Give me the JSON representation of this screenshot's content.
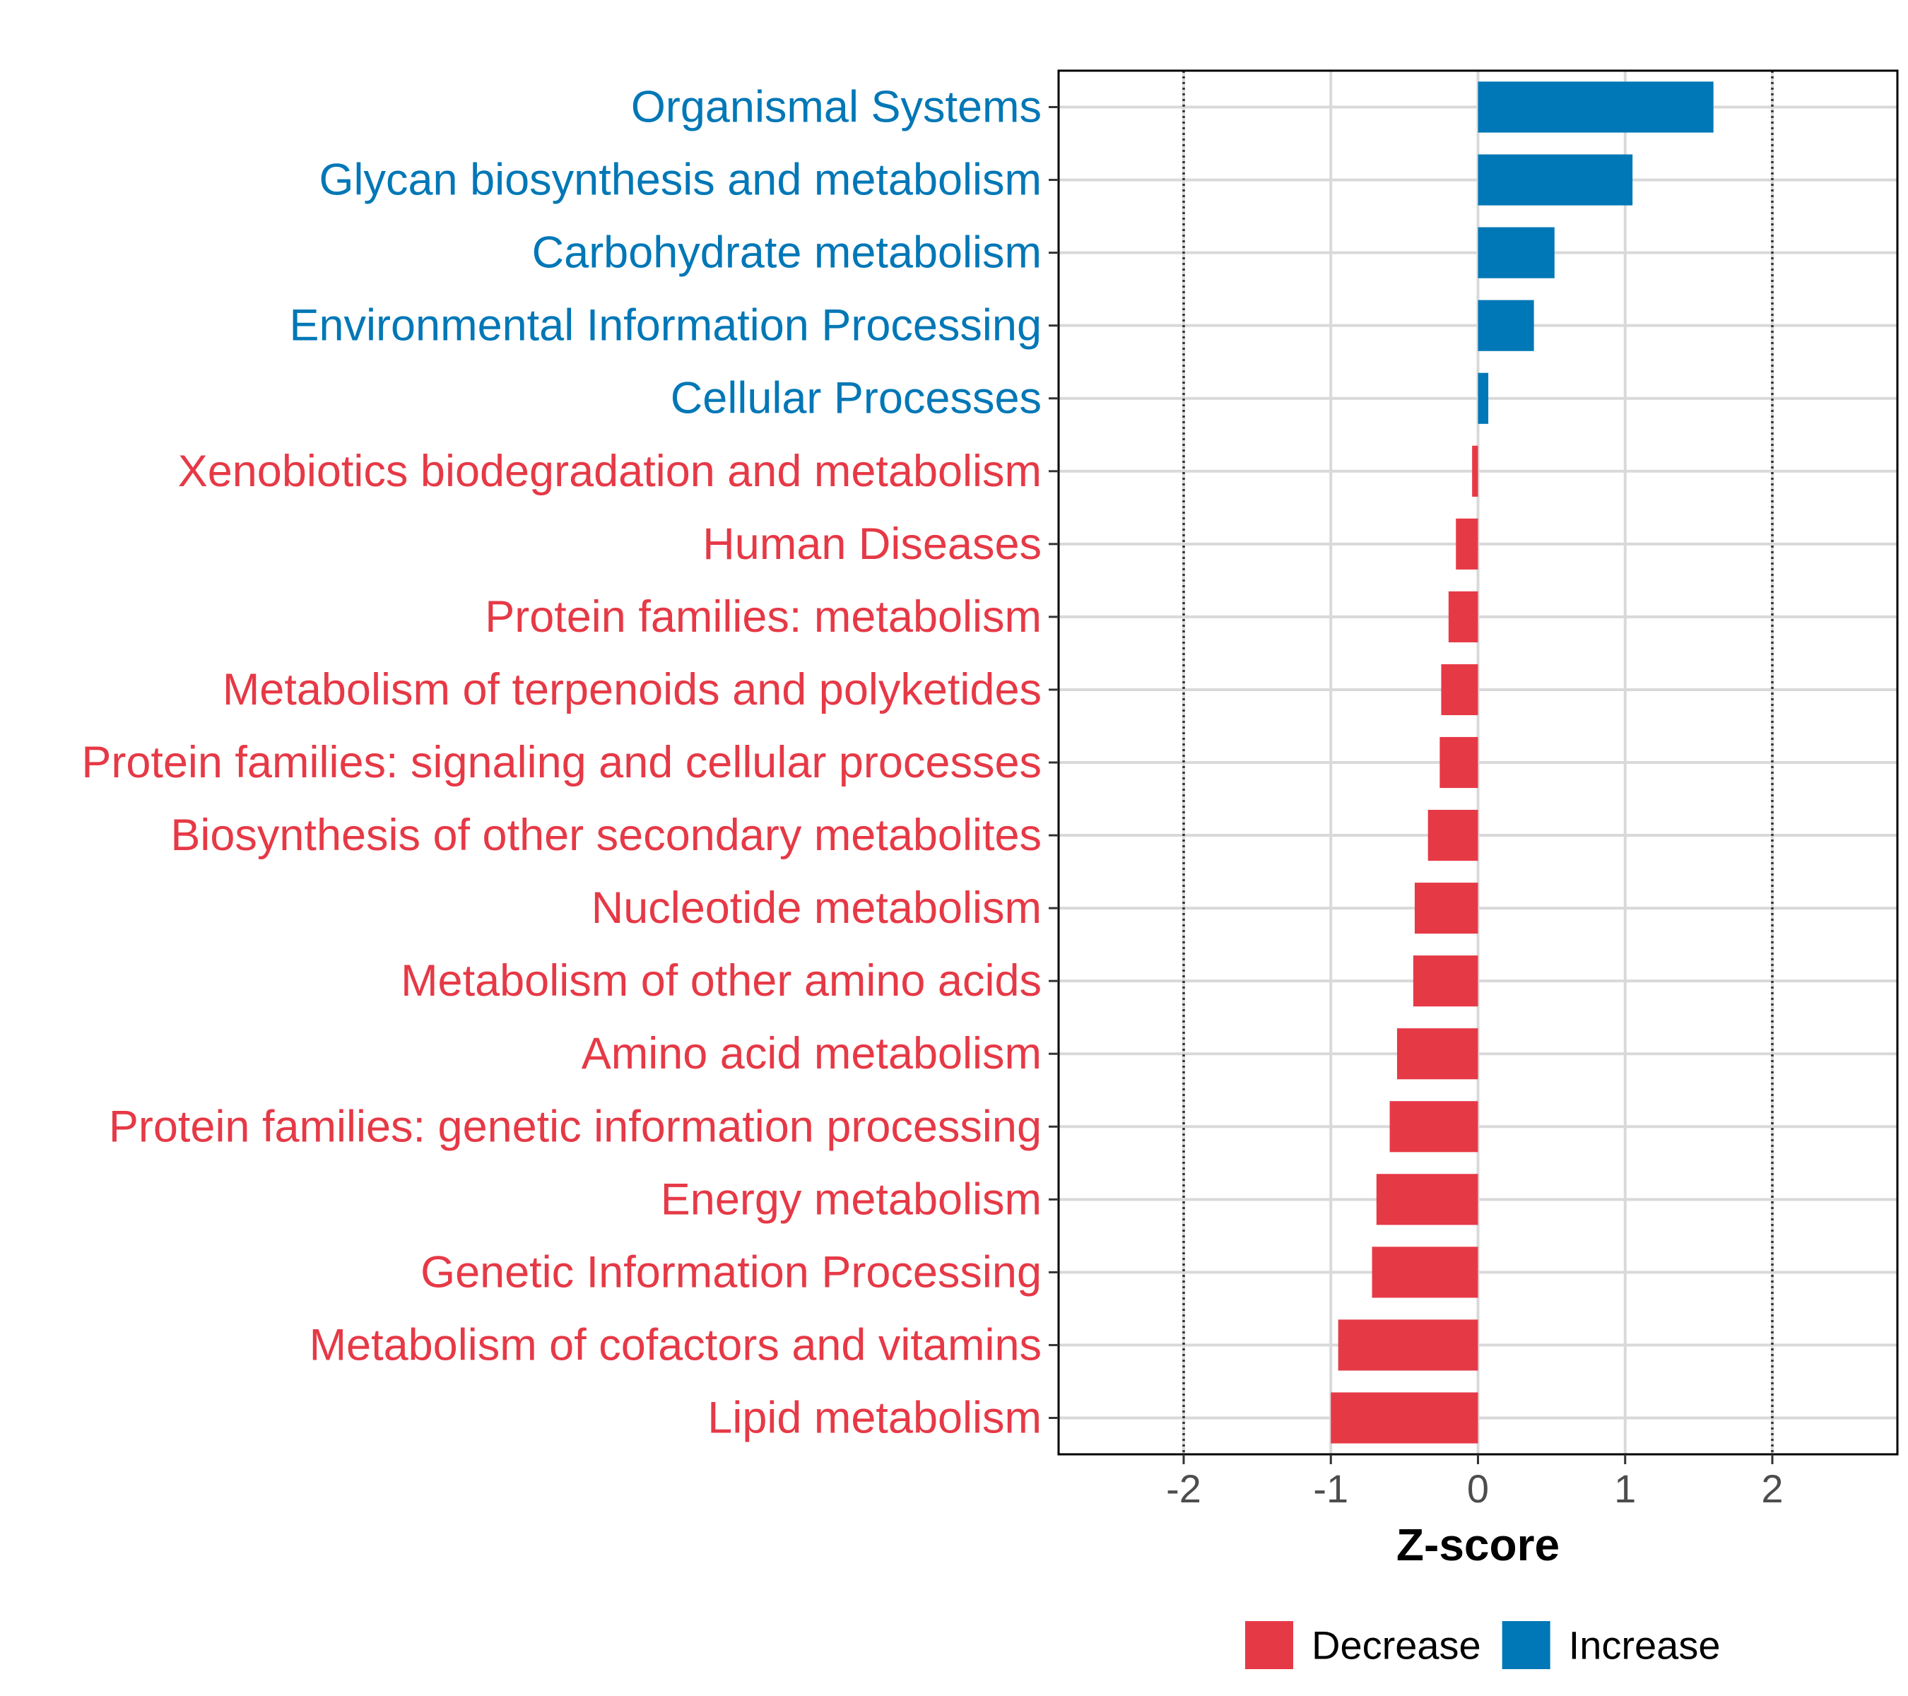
{
  "chart_data": {
    "type": "bar",
    "orientation": "horizontal",
    "categories": [
      "Organismal Systems",
      "Glycan biosynthesis and metabolism",
      "Carbohydrate metabolism",
      "Environmental Information Processing",
      "Cellular Processes",
      "Xenobiotics biodegradation and metabolism",
      "Human Diseases",
      "Protein families: metabolism",
      "Metabolism of terpenoids and polyketides",
      "Protein families: signaling and cellular processes",
      "Biosynthesis of other secondary metabolites",
      "Nucleotide metabolism",
      "Metabolism of other amino acids",
      "Amino acid metabolism",
      "Protein families: genetic information processing",
      "Energy metabolism",
      "Genetic Information Processing",
      "Metabolism of cofactors and vitamins",
      "Lipid metabolism"
    ],
    "values": [
      1.6,
      1.05,
      0.52,
      0.38,
      0.07,
      -0.04,
      -0.15,
      -0.2,
      -0.25,
      -0.26,
      -0.34,
      -0.43,
      -0.44,
      -0.55,
      -0.6,
      -0.69,
      -0.72,
      -0.95,
      -1.0
    ],
    "groups": [
      "Increase",
      "Increase",
      "Increase",
      "Increase",
      "Increase",
      "Decrease",
      "Decrease",
      "Decrease",
      "Decrease",
      "Decrease",
      "Decrease",
      "Decrease",
      "Decrease",
      "Decrease",
      "Decrease",
      "Decrease",
      "Decrease",
      "Decrease",
      "Decrease"
    ],
    "xlabel": "Z-score",
    "ylabel": "",
    "xlim": [
      -2.85,
      2.85
    ],
    "xticks": [
      -2,
      -1,
      0,
      1,
      2
    ],
    "xtick_labels": [
      "-2",
      "-1",
      "0",
      "1",
      "2"
    ],
    "reference_lines": [
      -2,
      2
    ],
    "grid": true,
    "legend": {
      "position": "bottom",
      "entries": [
        {
          "label": "Decrease",
          "color": "#e63946"
        },
        {
          "label": "Increase",
          "color": "#0077b6"
        }
      ]
    },
    "colors": {
      "Decrease": "#e63946",
      "Increase": "#0077b6",
      "grid": "#d9d9d9",
      "axis": "#000000"
    }
  }
}
